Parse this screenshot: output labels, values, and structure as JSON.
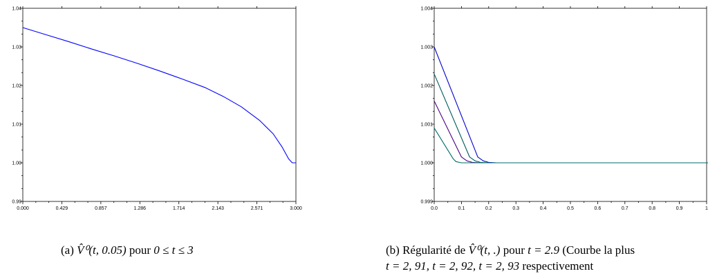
{
  "chart_data": [
    {
      "type": "line",
      "xlim": [
        0,
        3
      ],
      "ylim": [
        0.99,
        1.04
      ],
      "x_ticks": [
        "0.000",
        "0.429",
        "0.857",
        "1.286",
        "1.714",
        "2.143",
        "2.571",
        "3.000"
      ],
      "y_ticks": [
        "0.99",
        "1.00",
        "1.01",
        "1.02",
        "1.03",
        "1.04"
      ],
      "grid": false,
      "series": [
        {
          "color": "#0000ff",
          "x": [
            0.0,
            0.25,
            0.5,
            0.75,
            1.0,
            1.25,
            1.5,
            1.75,
            2.0,
            2.2,
            2.4,
            2.6,
            2.75,
            2.85,
            2.92,
            2.96,
            3.0
          ],
          "y": [
            1.035,
            1.0332,
            1.0314,
            1.0295,
            1.0277,
            1.0258,
            1.0238,
            1.0217,
            1.0195,
            1.0172,
            1.0145,
            1.011,
            1.0075,
            1.004,
            1.001,
            1.0,
            1.0
          ]
        }
      ],
      "caption": {
        "label": "(a)",
        "math": "V̂⁰(t, 0.05)",
        "text_pour": "pour",
        "range": "0 ≤ t ≤ 3"
      }
    },
    {
      "type": "line",
      "xlim": [
        0,
        1
      ],
      "ylim": [
        0.999,
        1.004
      ],
      "x_ticks": [
        "0.0",
        "0.1",
        "0.2",
        "0.3",
        "0.4",
        "0.5",
        "0.6",
        "0.7",
        "0.8",
        "0.9",
        "1"
      ],
      "y_ticks": [
        "0.999",
        "1.000",
        "1.001",
        "1.002",
        "1.003",
        "1.004"
      ],
      "grid": false,
      "series": [
        {
          "color": "#0000cd",
          "x": [
            0.0,
            0.16,
            0.18,
            0.2,
            0.23,
            1.0
          ],
          "y": [
            1.003,
            1.00015,
            1.00005,
            1.00001,
            1.0,
            1.0
          ]
        },
        {
          "color": "#005a5a",
          "x": [
            0.0,
            0.13,
            0.15,
            0.17,
            0.2,
            1.0
          ],
          "y": [
            1.0023,
            1.00015,
            1.00005,
            1.00001,
            1.0,
            1.0
          ]
        },
        {
          "color": "#4b0082",
          "x": [
            0.0,
            0.1,
            0.12,
            0.14,
            0.17,
            1.0
          ],
          "y": [
            1.0016,
            1.00015,
            1.00005,
            1.00001,
            1.0,
            1.0
          ]
        },
        {
          "color": "#006a6a",
          "x": [
            0.0,
            0.07,
            0.08,
            0.1,
            0.12,
            1.0
          ],
          "y": [
            1.0009,
            1.0001,
            1.00003,
            1.0,
            1.0,
            1.0
          ]
        }
      ],
      "caption": {
        "label": "(b)",
        "line1_text": "Régularité de",
        "math": "V̂⁰(t, .)",
        "line1_pour": "pour",
        "line1_eq": "t = 2.9",
        "line1_tail": "(Courbe la plus",
        "line2_eqs": "t = 2, 91, t = 2, 92, t = 2, 93",
        "line2_tail": "respectivement"
      }
    }
  ]
}
